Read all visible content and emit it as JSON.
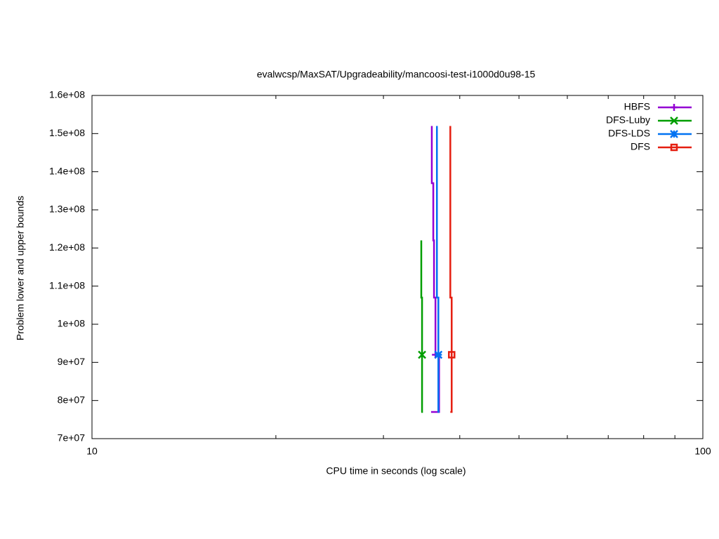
{
  "chart_data": {
    "type": "line",
    "title": "evalwcsp/MaxSAT/Upgradeability/mancoosi-test-i1000d0u98-15",
    "x_label": "CPU time in seconds (log scale)",
    "y_label": "Problem lower and upper bounds",
    "xlog": true,
    "xlim": [
      10,
      100
    ],
    "xticks": [
      10,
      100
    ],
    "xminor_ticks": [
      20,
      30,
      40,
      50,
      60,
      70,
      80,
      90
    ],
    "ylim": [
      70000000,
      160000000
    ],
    "yticks": [
      {
        "value": 70000000,
        "label": "7e+07"
      },
      {
        "value": 80000000,
        "label": "8e+07"
      },
      {
        "value": 90000000,
        "label": "9e+07"
      },
      {
        "value": 100000000,
        "label": "1e+08"
      },
      {
        "value": 110000000,
        "label": "1.1e+08"
      },
      {
        "value": 120000000,
        "label": "1.2e+08"
      },
      {
        "value": 130000000,
        "label": "1.3e+08"
      },
      {
        "value": 140000000,
        "label": "1.4e+08"
      },
      {
        "value": 150000000,
        "label": "1.5e+08"
      },
      {
        "value": 160000000,
        "label": "1.6e+08"
      }
    ],
    "legend": "top-right",
    "series": [
      {
        "name": "HBFS",
        "color": "#9400d3",
        "marker": "plus",
        "x": [
          36.0,
          36.0,
          36.2,
          36.2,
          36.3,
          36.3,
          36.5,
          36.5
        ],
        "values": [
          152000000,
          137000000,
          137000000,
          122000000,
          122000000,
          107000000,
          107000000,
          92000000
        ],
        "lower_x": [
          35.9,
          37.0,
          37.0
        ],
        "lower_values": [
          77000000,
          77000000,
          92000000
        ]
      },
      {
        "name": "DFS-Luby",
        "color": "#009e00",
        "marker": "cross",
        "x": [
          34.6,
          34.6,
          34.7,
          34.7
        ],
        "values": [
          122000000,
          107000000,
          107000000,
          92000000
        ],
        "lower_x": [
          34.6,
          34.7,
          34.7
        ],
        "lower_values": [
          77000000,
          77000000,
          92000000
        ]
      },
      {
        "name": "DFS-LDS",
        "color": "#0072f2",
        "marker": "star",
        "x": [
          36.7,
          36.7,
          36.9,
          36.9
        ],
        "values": [
          152000000,
          107000000,
          107000000,
          92000000
        ],
        "lower_x": [
          36.8,
          36.9,
          36.9
        ],
        "lower_values": [
          77000000,
          77000000,
          92000000
        ]
      },
      {
        "name": "DFS",
        "color": "#e51e10",
        "marker": "square",
        "x": [
          38.6,
          38.6,
          38.8,
          38.8
        ],
        "values": [
          152000000,
          107000000,
          107000000,
          92000000
        ],
        "lower_x": [
          38.6,
          38.8,
          38.8
        ],
        "lower_values": [
          77000000,
          77000000,
          92000000
        ]
      }
    ]
  }
}
